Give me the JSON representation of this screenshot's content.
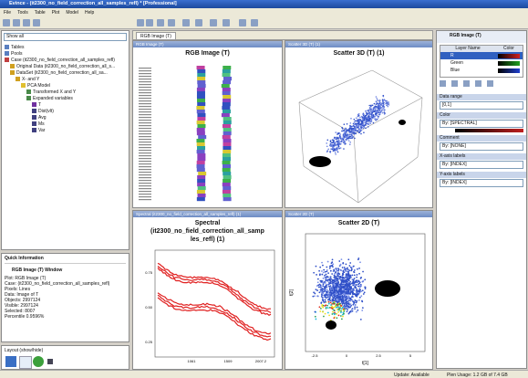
{
  "window": {
    "title": "Evince - (it2300_no_field_correction_all_samples_refl) * [Professional]"
  },
  "menu": [
    "File",
    "Tools",
    "Table",
    "Plot",
    "Model",
    "Help"
  ],
  "left": {
    "search": "Show all",
    "tree": [
      "Tables",
      "Pools",
      "Case (it2300_no_field_correction_all_samples_refl)",
      "Original Data (it2300_no_field_correction_all_s...",
      "DataSet (it2300_no_field_correction_all_sa...",
      "X- and Y",
      "PCA Model",
      "Transformed X and Y",
      "Expanded variables",
      "T",
      "Dist(vlt)",
      "Avg",
      "Ms",
      "Var"
    ],
    "quick_info": {
      "title": "Quick Information",
      "window": "RGB Image (T) Window",
      "lines": [
        "Plot: RGB Image (T)",
        "Case: (it2300_no_field_correction_all_samples_refl)",
        "Pixels: Lines",
        "Data: Image of T",
        "Objects: 2997124",
        "Visible: 2997124",
        "Selected: 8007",
        "Percentile 0.9596%"
      ]
    },
    "layout": "Layout (show/hide)"
  },
  "tab": "RGB Image (T)",
  "panels": [
    {
      "header": "RGB Image (T)",
      "title": "RGB Image (T)"
    },
    {
      "header": "Scatter 3D (T) (1)",
      "title": "Scatter 3D (T) (1)"
    },
    {
      "header": "Spectral (it2300_no_field_correction_all_samples_refl) (1)",
      "title": [
        "Spectral",
        "(it2300_no_field_correction_all_samp",
        "les_refl) (1)"
      ],
      "yticks": [
        "0.75",
        "0.50",
        "0.25"
      ],
      "xticks": [
        "1061",
        "1509",
        "2007.2"
      ]
    },
    {
      "header": "Scatter 2D (T)",
      "title": "Scatter 2D (T)",
      "xticks": [
        "-2.5",
        "0",
        "2.5",
        "5"
      ],
      "xlabel": "t[1]",
      "ylabel": "t[2]"
    }
  ],
  "right": {
    "header": "RGB Image (T)",
    "columns": [
      "Layer Name",
      "Color"
    ],
    "layers": [
      "R",
      "Green",
      "Blue"
    ],
    "fields": [
      {
        "label": "Data range",
        "value": "[0,1]"
      },
      {
        "label": "Color",
        "value": "By: [SPECTRAL]"
      },
      {
        "label": "Comment",
        "value": "By: [NONE]"
      },
      {
        "label": "X-axis labels",
        "value": "By: [INDEX]"
      },
      {
        "label": "Y-axis labels",
        "value": "By: [INDEX]"
      }
    ]
  },
  "status": {
    "left": "Update: Available",
    "right": "Plen Usage: 1.2 GB of 7.4 GB"
  }
}
